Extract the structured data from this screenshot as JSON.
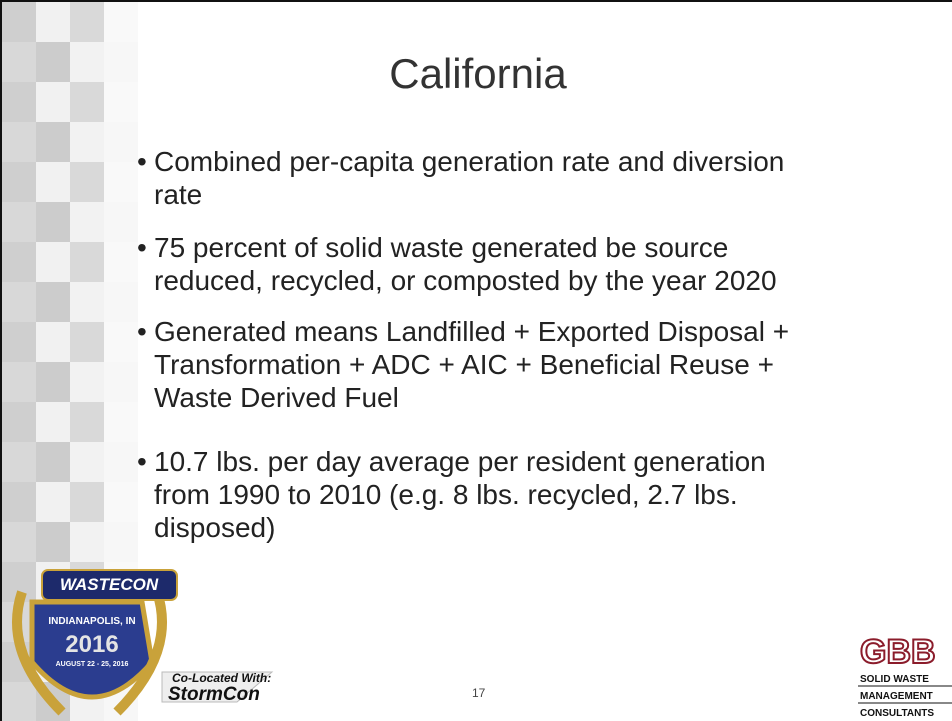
{
  "slide": {
    "title": "California",
    "bullets": [
      [
        "Combined per-capita generation rate and diversion",
        "rate"
      ],
      [
        "75 percent of solid waste generated be source",
        "reduced, recycled, or composted by the year 2020"
      ],
      [
        "Generated means Landfilled + Exported Disposal +",
        "Transformation + ADC + AIC + Beneficial Reuse +",
        "Waste Derived Fuel"
      ],
      [
        "10.7 lbs. per day average per resident generation",
        "from 1990 to 2010 (e.g. 8 lbs. recycled, 2.7 lbs.",
        "disposed)"
      ]
    ],
    "page_number": "17"
  },
  "wastecon_logo": {
    "brand": "WASTECON",
    "location": "INDIANAPOLIS, IN",
    "year": "2016",
    "dates": "AUGUST 22 - 25, 2016"
  },
  "stormcon_logo": {
    "tagline": "Co-Located With:",
    "brand": "StormCon"
  },
  "gbb_logo": {
    "brand": "GBB",
    "line1": "SOLID WASTE",
    "line2": "MANAGEMENT",
    "line3": "CONSULTANTS"
  }
}
